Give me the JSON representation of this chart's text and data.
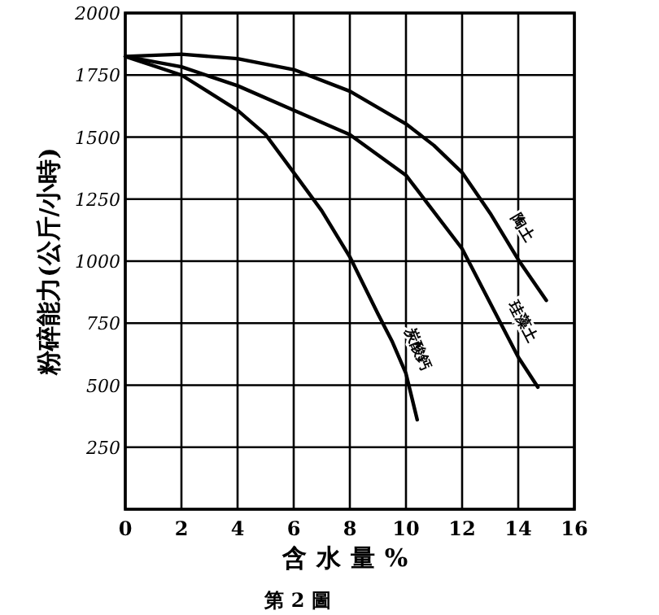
{
  "chart_data": {
    "type": "line",
    "title": "第 2 圖",
    "xlabel": "含水量%",
    "ylabel": "粉碎能力(公斤/小時)",
    "xlim": [
      0,
      16
    ],
    "xticks": [
      0,
      2,
      4,
      6,
      8,
      10,
      12,
      14,
      16
    ],
    "ylim": [
      0,
      2000
    ],
    "yticks": [
      {
        "value": 0,
        "label": null
      },
      250,
      500,
      750,
      1000,
      1250,
      1500,
      1750,
      2000
    ],
    "grid": true,
    "marker": "none",
    "line_style": "solid",
    "series": [
      {
        "name": "陶土",
        "color": "#000000",
        "x": [
          0,
          2,
          4,
          6,
          8,
          10,
          11,
          12,
          13,
          14,
          15
        ],
        "values": [
          1825,
          1834,
          1816,
          1772,
          1685,
          1553,
          1466,
          1357,
          1193,
          1006,
          842
        ]
      },
      {
        "name": "珪藻土",
        "color": "#000000",
        "x": [
          0,
          2,
          4,
          6,
          8,
          10,
          12,
          13,
          14,
          14.7
        ],
        "values": [
          1825,
          1783,
          1707,
          1608,
          1510,
          1346,
          1050,
          831,
          613,
          492
        ]
      },
      {
        "name": "炭酸鈣",
        "color": "#000000",
        "x": [
          0,
          2,
          4,
          5,
          6,
          7,
          8,
          9,
          9.5,
          10,
          10.4
        ],
        "values": [
          1825,
          1750,
          1608,
          1510,
          1357,
          1203,
          1017,
          788,
          678,
          547,
          361
        ]
      }
    ]
  }
}
